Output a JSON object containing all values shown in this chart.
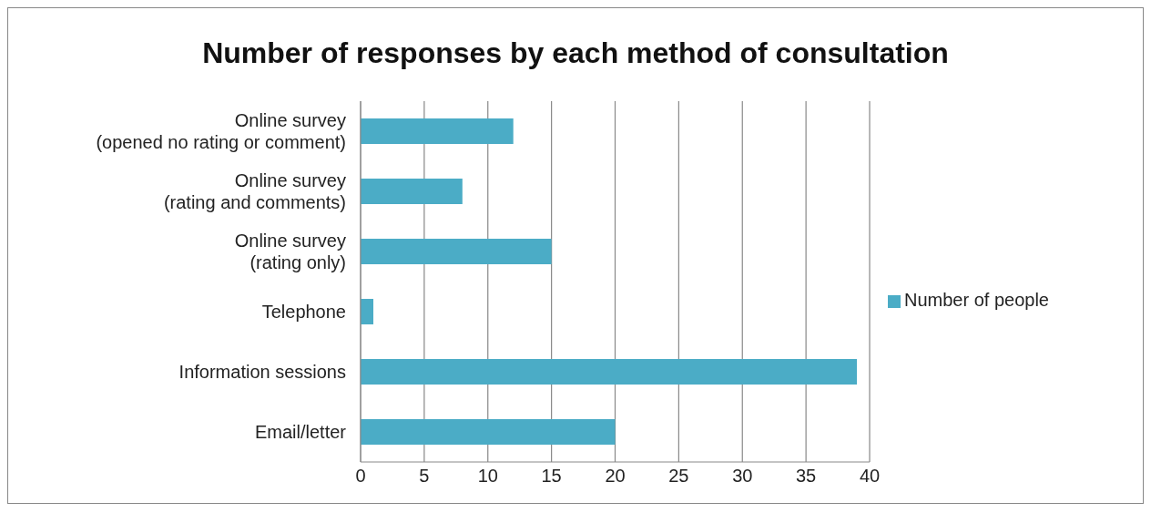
{
  "chart_data": {
    "type": "bar",
    "orientation": "horizontal",
    "title": "Number of responses by each method of consultation",
    "categories": [
      "Online survey\n(opened no rating or comment)",
      "Online survey\n(rating and comments)",
      "Online survey\n(rating only)",
      "Telephone",
      "Information sessions",
      "Email/letter"
    ],
    "series": [
      {
        "name": "Number of people",
        "color": "#4bacc6",
        "values": [
          12,
          8,
          15,
          1,
          39,
          20
        ]
      }
    ],
    "xlim": [
      0,
      40
    ],
    "xticks": [
      0,
      5,
      10,
      15,
      20,
      25,
      30,
      35,
      40
    ],
    "grid": "x",
    "legend": "right"
  }
}
